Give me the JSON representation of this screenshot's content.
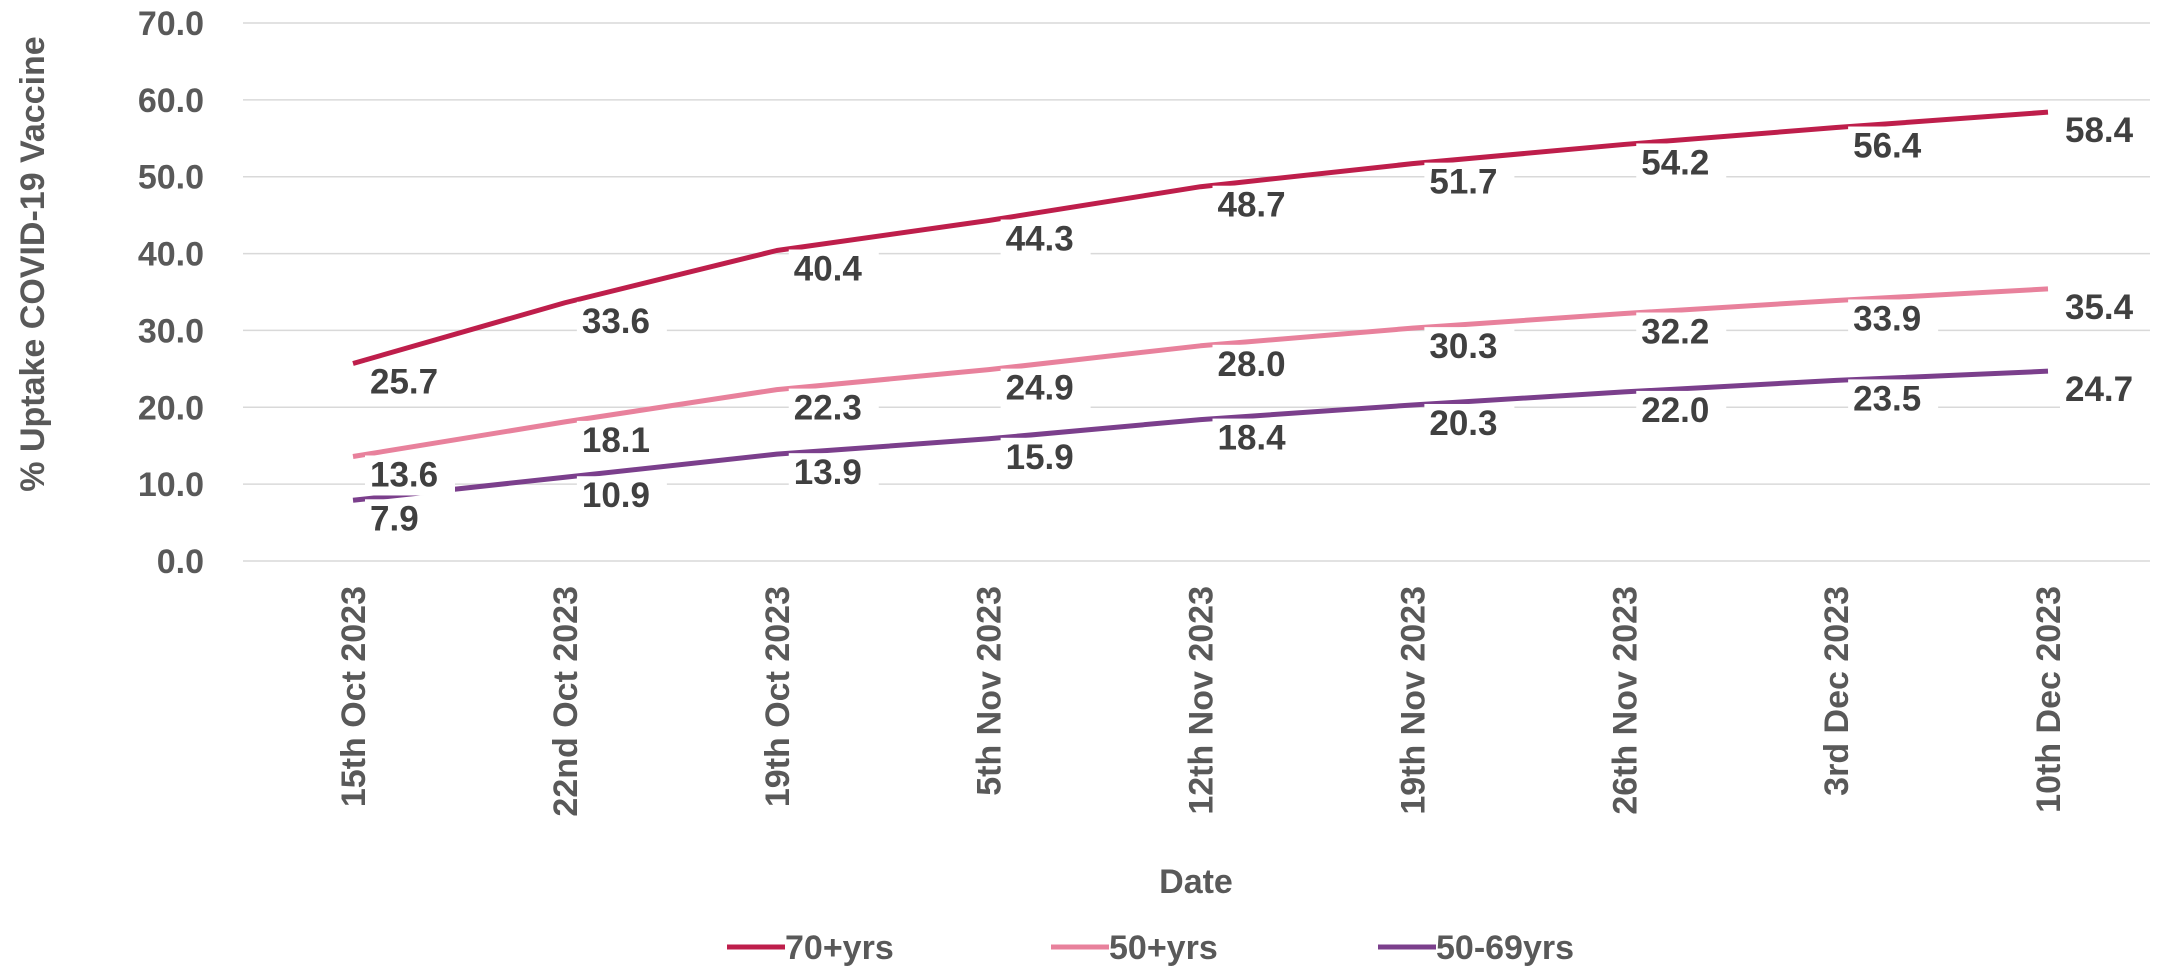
{
  "chart_data": {
    "type": "line",
    "title": "",
    "xlabel": "Date",
    "ylabel": "% Uptake COVID-19 Vaccine",
    "ylim": [
      0,
      70
    ],
    "yticks": [
      "0.0",
      "10.0",
      "20.0",
      "30.0",
      "40.0",
      "50.0",
      "60.0",
      "70.0"
    ],
    "grid": true,
    "legend_position": "bottom",
    "categories": [
      "15th Oct 2023",
      "22nd Oct 2023",
      "19th Oct 2023",
      "5th Nov 2023",
      "12th Nov 2023",
      "19th Nov 2023",
      "26th Nov 2023",
      "3rd Dec 2023",
      "10th Dec 2023"
    ],
    "series": [
      {
        "name": "70+yrs",
        "color": "#be1e4b",
        "values": [
          25.7,
          33.6,
          40.4,
          44.3,
          48.7,
          51.7,
          54.2,
          56.4,
          58.4
        ],
        "labels": [
          "25.7",
          "33.6",
          "40.4",
          "44.3",
          "48.7",
          "51.7",
          "54.2",
          "56.4",
          "58.4"
        ]
      },
      {
        "name": "50+yrs",
        "color": "#e8819c",
        "values": [
          13.6,
          18.1,
          22.3,
          24.9,
          28.0,
          30.3,
          32.2,
          33.9,
          35.4
        ],
        "labels": [
          "13.6",
          "18.1",
          "22.3",
          "24.9",
          "28.0",
          "30.3",
          "32.2",
          "33.9",
          "35.4"
        ]
      },
      {
        "name": "50-69yrs",
        "color": "#7b3f8c",
        "values": [
          7.9,
          10.9,
          13.9,
          15.9,
          18.4,
          20.3,
          22.0,
          23.5,
          24.7
        ],
        "labels": [
          "7.9",
          "10.9",
          "13.9",
          "15.9",
          "18.4",
          "20.3",
          "22.0",
          "23.5",
          "24.7"
        ]
      }
    ]
  }
}
